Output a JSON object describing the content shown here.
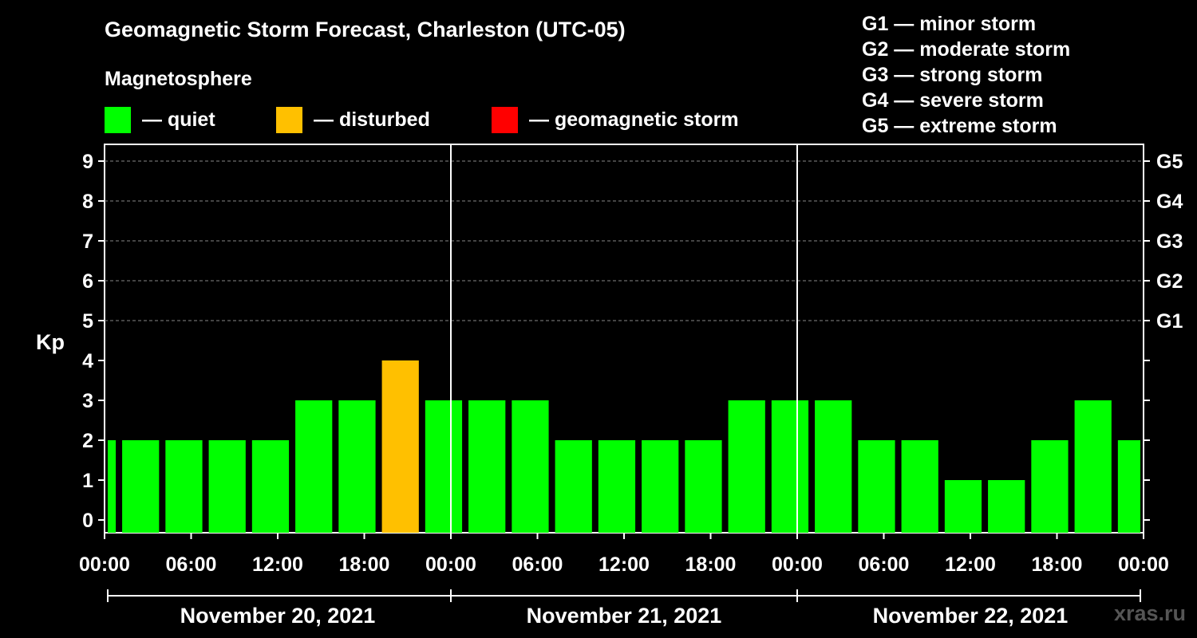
{
  "header": {
    "title": "Geomagnetic Storm Forecast, Charleston (UTC-05)",
    "subtitle": "Magnetosphere"
  },
  "legend": [
    {
      "label": "— quiet",
      "color": "#00ff00"
    },
    {
      "label": "— disturbed",
      "color": "#ffc000"
    },
    {
      "label": "— geomagnetic storm",
      "color": "#ff0000"
    }
  ],
  "storm_scale": [
    "G1 — minor storm",
    "G2 — moderate storm",
    "G3 — strong storm",
    "G4 — severe storm",
    "G5 — extreme storm"
  ],
  "watermark": "xras.ru",
  "chart_data": {
    "type": "bar",
    "title": "Geomagnetic Storm Forecast, Charleston (UTC-05)",
    "ylabel": "Kp",
    "ylim": [
      0,
      9
    ],
    "yticks": [
      "0",
      "1",
      "2",
      "3",
      "4",
      "5",
      "6",
      "7",
      "8",
      "9"
    ],
    "right_ticks": [
      {
        "kp": 5,
        "label": "G1"
      },
      {
        "kp": 6,
        "label": "G2"
      },
      {
        "kp": 7,
        "label": "G3"
      },
      {
        "kp": 8,
        "label": "G4"
      },
      {
        "kp": 9,
        "label": "G5"
      }
    ],
    "grid": "dashed horizontal at Kp 5-9",
    "xtick_labels": [
      "00:00",
      "06:00",
      "12:00",
      "18:00",
      "00:00",
      "06:00",
      "12:00",
      "18:00",
      "00:00",
      "06:00",
      "12:00",
      "18:00",
      "00:00"
    ],
    "dates": [
      "November 20, 2021",
      "November 21, 2021",
      "November 22, 2021"
    ],
    "bars": [
      {
        "start_hour": 0,
        "end_hour": 1,
        "kp": 2,
        "status": "quiet"
      },
      {
        "start_hour": 1,
        "end_hour": 4,
        "kp": 2,
        "status": "quiet"
      },
      {
        "start_hour": 4,
        "end_hour": 7,
        "kp": 2,
        "status": "quiet"
      },
      {
        "start_hour": 7,
        "end_hour": 10,
        "kp": 2,
        "status": "quiet"
      },
      {
        "start_hour": 10,
        "end_hour": 13,
        "kp": 2,
        "status": "quiet"
      },
      {
        "start_hour": 13,
        "end_hour": 16,
        "kp": 3,
        "status": "quiet"
      },
      {
        "start_hour": 16,
        "end_hour": 19,
        "kp": 3,
        "status": "quiet"
      },
      {
        "start_hour": 19,
        "end_hour": 22,
        "kp": 4,
        "status": "disturbed"
      },
      {
        "start_hour": 22,
        "end_hour": 25,
        "kp": 3,
        "status": "quiet"
      },
      {
        "start_hour": 25,
        "end_hour": 28,
        "kp": 3,
        "status": "quiet"
      },
      {
        "start_hour": 28,
        "end_hour": 31,
        "kp": 3,
        "status": "quiet"
      },
      {
        "start_hour": 31,
        "end_hour": 34,
        "kp": 2,
        "status": "quiet"
      },
      {
        "start_hour": 34,
        "end_hour": 37,
        "kp": 2,
        "status": "quiet"
      },
      {
        "start_hour": 37,
        "end_hour": 40,
        "kp": 2,
        "status": "quiet"
      },
      {
        "start_hour": 40,
        "end_hour": 43,
        "kp": 2,
        "status": "quiet"
      },
      {
        "start_hour": 43,
        "end_hour": 46,
        "kp": 3,
        "status": "quiet"
      },
      {
        "start_hour": 46,
        "end_hour": 49,
        "kp": 3,
        "status": "quiet"
      },
      {
        "start_hour": 49,
        "end_hour": 52,
        "kp": 3,
        "status": "quiet"
      },
      {
        "start_hour": 52,
        "end_hour": 55,
        "kp": 2,
        "status": "quiet"
      },
      {
        "start_hour": 55,
        "end_hour": 58,
        "kp": 2,
        "status": "quiet"
      },
      {
        "start_hour": 58,
        "end_hour": 61,
        "kp": 1,
        "status": "quiet"
      },
      {
        "start_hour": 61,
        "end_hour": 64,
        "kp": 1,
        "status": "quiet"
      },
      {
        "start_hour": 64,
        "end_hour": 67,
        "kp": 2,
        "status": "quiet"
      },
      {
        "start_hour": 67,
        "end_hour": 70,
        "kp": 3,
        "status": "quiet"
      },
      {
        "start_hour": 70,
        "end_hour": 72,
        "kp": 2,
        "status": "quiet"
      }
    ],
    "status_colors": {
      "quiet": "#00ff00",
      "disturbed": "#ffc000",
      "storm": "#ff0000"
    }
  }
}
